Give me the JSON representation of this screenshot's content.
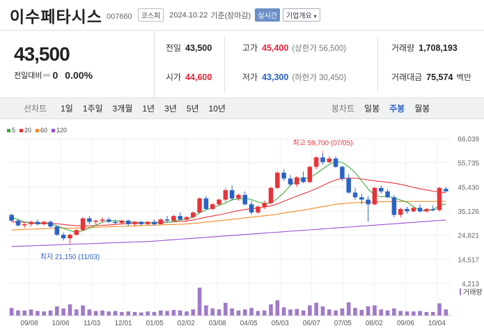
{
  "header": {
    "name": "이수페타시스",
    "code": "007660",
    "market": "코스피",
    "date": "2024.10.22",
    "basis": "기준(장마감)",
    "realtime": "실시간",
    "company_info": "기업개요"
  },
  "price": {
    "current": "43,500",
    "change_label": "전일대비",
    "change": "0",
    "change_pct": "0.00%"
  },
  "stats": {
    "prev_label": "전일",
    "prev": "43,500",
    "high_label": "고가",
    "high": "45,400",
    "upper_limit": "(상한가 56,500)",
    "volume_label": "거래량",
    "volume": "1,708,193",
    "open_label": "시가",
    "open": "44,600",
    "low_label": "저가",
    "low": "43,300",
    "lower_limit": "(하한가 30,450)",
    "amount_label": "거래대금",
    "amount": "75,574",
    "amount_unit": "백만"
  },
  "periods": {
    "label": "선차트",
    "items": [
      "1일",
      "1주일",
      "3개월",
      "1년",
      "3년",
      "5년",
      "10년"
    ],
    "candle_label": "봉차트",
    "candle_items": [
      "일봉",
      "주봉",
      "월봉"
    ],
    "active": "주봉"
  },
  "legend": [
    {
      "label": "5",
      "color": "#3aab3a"
    },
    {
      "label": "20",
      "color": "#e8333a"
    },
    {
      "label": "60",
      "color": "#f08a1e"
    },
    {
      "label": "120",
      "color": "#9b4fd0"
    }
  ],
  "chart_data": {
    "type": "candlestick",
    "yticks": [
      "66,039",
      "55,735",
      "45,430",
      "35,126",
      "24,821",
      "14,517",
      "4,213"
    ],
    "ylim": [
      4213,
      66039
    ],
    "xticks": [
      "09/08",
      "10/06",
      "11/03",
      "12/01",
      "01/05",
      "02/02",
      "03/08",
      "04/05",
      "05/03",
      "06/07",
      "07/05",
      "08/02",
      "09/06",
      "10/04"
    ],
    "max_annotation": "최고 59,700 (07/05)",
    "min_annotation": "최저 21,150 (11/03)",
    "volume_label": "거래량",
    "up_color": "#e8333a",
    "down_color": "#2a62c7",
    "candles": [
      [
        33500,
        34000,
        30500,
        31000
      ],
      [
        31000,
        31500,
        28500,
        29000
      ],
      [
        29000,
        30000,
        28000,
        29500
      ],
      [
        29500,
        31000,
        28500,
        30500
      ],
      [
        30500,
        31500,
        29000,
        29500
      ],
      [
        29500,
        31000,
        29000,
        30500
      ],
      [
        30500,
        31000,
        28000,
        28500
      ],
      [
        28500,
        29000,
        24500,
        25000
      ],
      [
        25000,
        26000,
        22500,
        23500
      ],
      [
        23500,
        25500,
        21150,
        25000
      ],
      [
        25000,
        27500,
        24500,
        27000
      ],
      [
        27000,
        32500,
        26500,
        32000
      ],
      [
        32000,
        33000,
        29500,
        30500
      ],
      [
        30500,
        31500,
        29000,
        31000
      ],
      [
        31000,
        32500,
        30000,
        31500
      ],
      [
        31500,
        32500,
        30000,
        30500
      ],
      [
        30500,
        31500,
        29500,
        30000
      ],
      [
        30000,
        31500,
        29500,
        31000
      ],
      [
        31000,
        31500,
        29000,
        29500
      ],
      [
        29500,
        31000,
        28500,
        30500
      ],
      [
        30500,
        31000,
        29000,
        29500
      ],
      [
        29500,
        31000,
        29000,
        30500
      ],
      [
        30500,
        31500,
        29000,
        29500
      ],
      [
        29500,
        32000,
        29500,
        31500
      ],
      [
        31500,
        33000,
        30500,
        31000
      ],
      [
        31000,
        33500,
        30500,
        33000
      ],
      [
        33000,
        34500,
        31000,
        31500
      ],
      [
        31500,
        33000,
        30500,
        32500
      ],
      [
        32500,
        35000,
        32000,
        34500
      ],
      [
        34500,
        41000,
        34000,
        40500
      ],
      [
        40500,
        41500,
        35500,
        36000
      ],
      [
        36000,
        38500,
        35500,
        38000
      ],
      [
        38000,
        40500,
        37500,
        40000
      ],
      [
        40000,
        45000,
        39000,
        44000
      ],
      [
        44000,
        46000,
        39500,
        40500
      ],
      [
        40500,
        42500,
        39500,
        42000
      ],
      [
        42000,
        43500,
        37500,
        38000
      ],
      [
        38000,
        39500,
        33500,
        34500
      ],
      [
        34500,
        37500,
        34000,
        37000
      ],
      [
        37000,
        39500,
        36000,
        38500
      ],
      [
        38500,
        45500,
        38000,
        45000
      ],
      [
        45000,
        52000,
        44500,
        51500
      ],
      [
        51500,
        53000,
        48000,
        49000
      ],
      [
        49000,
        50500,
        46000,
        46500
      ],
      [
        46500,
        50000,
        45500,
        49500
      ],
      [
        49500,
        52000,
        47000,
        47500
      ],
      [
        47500,
        54500,
        47000,
        54000
      ],
      [
        54000,
        58500,
        53000,
        58000
      ],
      [
        58000,
        59700,
        55000,
        56000
      ],
      [
        56000,
        58500,
        55500,
        57500
      ],
      [
        57500,
        58500,
        53500,
        54000
      ],
      [
        54000,
        54500,
        48000,
        49000
      ],
      [
        49000,
        51000,
        42500,
        43000
      ],
      [
        43000,
        45000,
        40000,
        41000
      ],
      [
        41000,
        42500,
        38000,
        40000
      ],
      [
        40000,
        41500,
        30500,
        38000
      ],
      [
        38000,
        45500,
        37500,
        45000
      ],
      [
        45000,
        46000,
        42500,
        43500
      ],
      [
        43500,
        44500,
        40500,
        41000
      ],
      [
        41000,
        42000,
        32500,
        33500
      ],
      [
        33500,
        36500,
        32500,
        36000
      ],
      [
        36000,
        37000,
        34000,
        35000
      ],
      [
        35000,
        37000,
        34500,
        36500
      ],
      [
        36500,
        38000,
        34500,
        35000
      ],
      [
        35000,
        36500,
        34500,
        36000
      ],
      [
        36000,
        37500,
        35000,
        35500
      ],
      [
        35500,
        45400,
        35000,
        45000
      ],
      [
        44600,
        45400,
        43300,
        43500
      ]
    ],
    "volumes": [
      15,
      10,
      10,
      12,
      9,
      8,
      10,
      18,
      14,
      22,
      12,
      20,
      12,
      9,
      10,
      8,
      9,
      7,
      8,
      7,
      6,
      8,
      7,
      10,
      9,
      11,
      10,
      8,
      12,
      55,
      20,
      14,
      12,
      25,
      14,
      10,
      12,
      15,
      9,
      10,
      22,
      30,
      16,
      12,
      13,
      10,
      20,
      25,
      18,
      12,
      10,
      14,
      26,
      15,
      11,
      18,
      20,
      12,
      10,
      14,
      9,
      8,
      8,
      9,
      7,
      7,
      24,
      12
    ],
    "ma5": [
      32500,
      31500,
      30500,
      30000,
      29800,
      29800,
      29700,
      28800,
      27800,
      26800,
      26000,
      26800,
      27800,
      29000,
      30500,
      31000,
      31000,
      30800,
      30600,
      30300,
      30200,
      30100,
      30000,
      30100,
      30300,
      30700,
      31300,
      31700,
      32500,
      34400,
      35600,
      36500,
      37600,
      38500,
      40000,
      40200,
      40600,
      40000,
      39000,
      38400,
      38500,
      40500,
      43000,
      46000,
      48300,
      49100,
      49300,
      51100,
      53100,
      55000,
      56300,
      55900,
      54000,
      51500,
      48000,
      44500,
      42000,
      41200,
      41400,
      40700,
      39800,
      38900,
      37000,
      35200,
      35400,
      35600,
      37400,
      38200
    ],
    "ma20": [
      30500,
      30400,
      30300,
      30200,
      30100,
      30000,
      29900,
      29700,
      29400,
      29100,
      28900,
      28800,
      28800,
      28900,
      29000,
      29200,
      29400,
      29600,
      29800,
      29900,
      30000,
      30100,
      30200,
      30300,
      30400,
      30500,
      30700,
      30900,
      31300,
      31900,
      32500,
      33000,
      33500,
      34100,
      34700,
      35300,
      35800,
      36100,
      36400,
      36800,
      37300,
      38200,
      39300,
      40400,
      41500,
      42500,
      43500,
      44700,
      46000,
      47300,
      48400,
      49000,
      49200,
      49100,
      48800,
      48400,
      48000,
      47700,
      47400,
      47000,
      46500,
      45900,
      45200,
      44600,
      44100,
      43600,
      43200,
      42900
    ],
    "ma60": [
      27000,
      27200,
      27300,
      27400,
      27500,
      27600,
      27700,
      27800,
      27800,
      27800,
      27900,
      28000,
      28100,
      28200,
      28300,
      28400,
      28500,
      28600,
      28700,
      28800,
      28900,
      29000,
      29100,
      29200,
      29300,
      29400,
      29500,
      29600,
      29800,
      30100,
      30400,
      30700,
      31000,
      31300,
      31600,
      31900,
      32200,
      32500,
      32800,
      33100,
      33400,
      33800,
      34300,
      34700,
      35100,
      35500,
      36000,
      36500,
      37000,
      37500,
      38000,
      38300,
      38500,
      38700,
      38800,
      38900,
      39000,
      39100,
      39100,
      39200,
      39200,
      39200,
      39200,
      39200,
      39200,
      39200,
      39300,
      39300
    ],
    "ma120": [
      20000,
      20100,
      20200,
      20300,
      20400,
      20500,
      20600,
      20700,
      20800,
      20900,
      21000,
      21100,
      21200,
      21300,
      21400,
      21500,
      21600,
      21700,
      21800,
      21900,
      22000,
      22100,
      22300,
      22500,
      22700,
      22900,
      23100,
      23300,
      23500,
      23700,
      23900,
      24100,
      24300,
      24500,
      24700,
      24900,
      25100,
      25300,
      25500,
      25700,
      25900,
      26100,
      26300,
      26500,
      26700,
      26900,
      27100,
      27300,
      27500,
      27700,
      27900,
      28100,
      28300,
      28500,
      28700,
      28900,
      29100,
      29300,
      29500,
      29700,
      29900,
      30100,
      30300,
      30500,
      30700,
      30900,
      31100,
      31300
    ]
  }
}
